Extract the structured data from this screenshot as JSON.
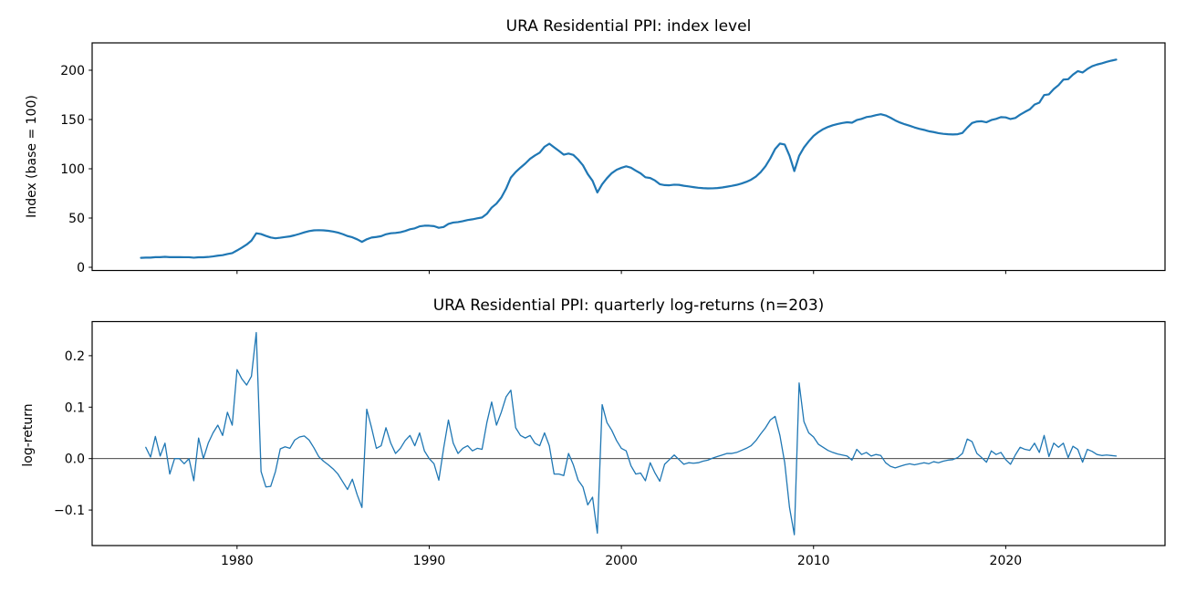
{
  "figure": {
    "background": "#ffffff",
    "series_color": "#1f77b4",
    "axis_color": "#000000",
    "zero_line_color": "#2b2b2b"
  },
  "chart_data": [
    {
      "type": "line",
      "title": "URA Residential PPI: index level",
      "ylabel": "Index (base = 100)",
      "legend": "none",
      "grid": false,
      "x_start": 1975.0,
      "x_step_years": 0.25,
      "n_points": 204,
      "frequency": "quarterly",
      "xlim": [
        1972.46,
        2028.29
      ],
      "ylim": [
        -3.24,
        227.76
      ],
      "yticks": [
        0,
        50,
        100,
        150,
        200
      ],
      "ytick_labels": [
        "0",
        "50",
        "100",
        "150",
        "200"
      ],
      "xticks": [
        1980,
        1990,
        2000,
        2010,
        2020
      ],
      "xtick_labels": [
        "1980",
        "1990",
        "2000",
        "2010",
        "2020"
      ],
      "xtick_labels_visible": false,
      "line_width": 2.2,
      "start_value": 9.6,
      "series_rule": "index[0] = start_value; index[t] = index[t-1] * exp(log_returns[t-1]) using chart_data[1].values",
      "key_levels": {
        "1975Q1": 9.6,
        "1981Q1_peak": 34.6,
        "1984Q2_peak": 37.7,
        "1986Q3_trough": 25.9,
        "1996Q2_peak": 125.7,
        "1998Q4_trough": 76,
        "2000Q2_peak": 102.7,
        "2008Q2_peak": 125.8,
        "2009Q1_trough": 97.9,
        "2013Q3_peak": 155.7,
        "2017Q2_trough": 135.1,
        "2025Q4_end": 216
      }
    },
    {
      "type": "line",
      "title": "URA Residential PPI: quarterly log-returns (n=203)",
      "ylabel": "log-return",
      "n": 203,
      "legend": "none",
      "grid": false,
      "x_start": 1975.25,
      "x_step_years": 0.25,
      "n_points": 203,
      "frequency": "quarterly",
      "xlim": [
        1972.46,
        2028.29
      ],
      "ylim": [
        -0.169,
        0.2663
      ],
      "yticks": [
        -0.1,
        0.0,
        0.1,
        0.2
      ],
      "ytick_labels": [
        "−0.1",
        "0.0",
        "0.1",
        "0.2"
      ],
      "xticks": [
        1980,
        1990,
        2000,
        2010,
        2020
      ],
      "xtick_labels": [
        "1980",
        "1990",
        "2000",
        "2010",
        "2020"
      ],
      "xtick_labels_visible": true,
      "line_width": 1.3,
      "zero_line": true,
      "values": [
        0.022,
        0.003,
        0.043,
        0.005,
        0.03,
        -0.03,
        0.0,
        0.0,
        -0.01,
        0.0,
        -0.043,
        0.04,
        0.0,
        0.03,
        0.05,
        0.065,
        0.045,
        0.09,
        0.065,
        0.173,
        0.155,
        0.143,
        0.16,
        0.245,
        -0.025,
        -0.055,
        -0.054,
        -0.025,
        0.019,
        0.023,
        0.02,
        0.036,
        0.042,
        0.044,
        0.036,
        0.021,
        0.004,
        -0.005,
        -0.012,
        -0.02,
        -0.03,
        -0.045,
        -0.06,
        -0.04,
        -0.07,
        -0.095,
        0.096,
        0.06,
        0.02,
        0.025,
        0.06,
        0.03,
        0.01,
        0.02,
        0.035,
        0.045,
        0.025,
        0.05,
        0.015,
        0.0,
        -0.01,
        -0.042,
        0.02,
        0.075,
        0.03,
        0.01,
        0.02,
        0.025,
        0.015,
        0.02,
        0.018,
        0.07,
        0.11,
        0.065,
        0.09,
        0.12,
        0.133,
        0.06,
        0.045,
        0.04,
        0.045,
        0.03,
        0.025,
        0.05,
        0.025,
        -0.03,
        -0.03,
        -0.033,
        0.01,
        -0.012,
        -0.042,
        -0.055,
        -0.09,
        -0.075,
        -0.145,
        0.105,
        0.07,
        0.055,
        0.035,
        0.02,
        0.015,
        -0.014,
        -0.03,
        -0.028,
        -0.043,
        -0.008,
        -0.028,
        -0.044,
        -0.011,
        -0.002,
        0.007,
        -0.002,
        -0.011,
        -0.008,
        -0.009,
        -0.008,
        -0.005,
        -0.003,
        0.001,
        0.004,
        0.007,
        0.01,
        0.01,
        0.012,
        0.016,
        0.02,
        0.025,
        0.035,
        0.048,
        0.06,
        0.075,
        0.082,
        0.045,
        -0.008,
        -0.095,
        -0.148,
        0.147,
        0.072,
        0.05,
        0.042,
        0.028,
        0.022,
        0.016,
        0.012,
        0.009,
        0.007,
        0.005,
        -0.003,
        0.018,
        0.008,
        0.012,
        0.005,
        0.008,
        0.006,
        -0.008,
        -0.015,
        -0.018,
        -0.015,
        -0.012,
        -0.01,
        -0.012,
        -0.01,
        -0.008,
        -0.01,
        -0.006,
        -0.008,
        -0.005,
        -0.003,
        -0.002,
        0.002,
        0.01,
        0.038,
        0.033,
        0.01,
        0.002,
        -0.007,
        0.015,
        0.008,
        0.012,
        -0.002,
        -0.011,
        0.007,
        0.022,
        0.018,
        0.016,
        0.03,
        0.012,
        0.045,
        0.004,
        0.03,
        0.022,
        0.03,
        0.002,
        0.024,
        0.018,
        -0.007,
        0.018,
        0.014,
        0.008,
        0.006,
        0.007,
        0.006,
        0.005
      ]
    }
  ]
}
